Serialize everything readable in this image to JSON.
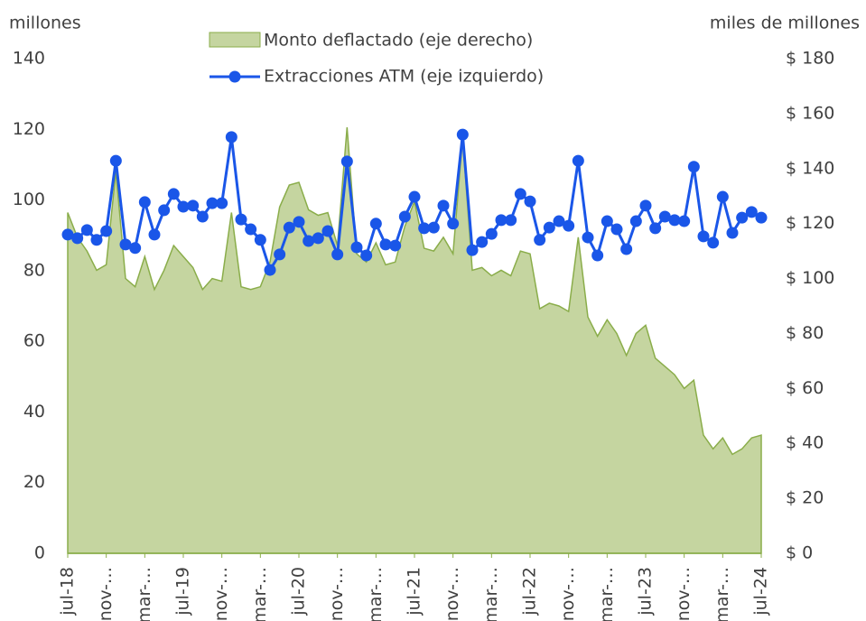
{
  "chart_data": {
    "type": "combo",
    "y_label": "millones",
    "y2_label": "miles de millones",
    "categories": [
      "jul-18",
      null,
      null,
      null,
      "nov-…",
      null,
      null,
      null,
      "mar-…",
      null,
      null,
      null,
      "jul-19",
      null,
      null,
      null,
      "nov-…",
      null,
      null,
      null,
      "mar-…",
      null,
      null,
      null,
      "jul-20",
      null,
      null,
      null,
      "nov-…",
      null,
      null,
      null,
      "mar-…",
      null,
      null,
      null,
      "jul-21",
      null,
      null,
      null,
      "nov-…",
      null,
      null,
      null,
      "mar-…",
      null,
      null,
      null,
      "jul-22",
      null,
      null,
      null,
      "nov-…",
      null,
      null,
      null,
      "mar-…",
      null,
      null,
      null,
      "jul-23",
      null,
      null,
      null,
      "nov-…",
      null,
      null,
      null,
      "mar-…",
      null,
      null,
      null,
      "jul-24"
    ],
    "series": [
      {
        "name": "Monto deflactado (eje derecho)",
        "type": "area",
        "axis": "y2",
        "color": "#c5d5a0",
        "line_color": "#8aad4a",
        "values": [
          124,
          115,
          110,
          103,
          105,
          139,
          100,
          97,
          108,
          96,
          103,
          112,
          108,
          104,
          96,
          100,
          99,
          124,
          97,
          96,
          97,
          106,
          126,
          134,
          135,
          125,
          123,
          124,
          112,
          155,
          109,
          106,
          113,
          105,
          106,
          119,
          128,
          111,
          110,
          115,
          109,
          151,
          103,
          104,
          101,
          103,
          101,
          110,
          109,
          89,
          91,
          90,
          88,
          115,
          86,
          79,
          85,
          80,
          72,
          80,
          83,
          71,
          68,
          65,
          60,
          63,
          43,
          38,
          42,
          36,
          38,
          42,
          43
        ]
      },
      {
        "name": "Extracciones ATM  (eje izquierdo)",
        "type": "line",
        "axis": "y",
        "color": "#1a56e8",
        "values": [
          90.2,
          89.2,
          91.5,
          88.7,
          91.2,
          111.1,
          87.4,
          86.4,
          99.4,
          90.2,
          97.1,
          101.7,
          98.1,
          98.4,
          95.3,
          99.1,
          99.1,
          117.8,
          94.5,
          91.7,
          88.7,
          80.2,
          84.6,
          92.2,
          93.8,
          88.4,
          89.2,
          91.2,
          84.6,
          110.9,
          86.6,
          84.3,
          93.3,
          87.4,
          87.1,
          95.3,
          100.9,
          92.0,
          92.2,
          98.4,
          93.3,
          118.5,
          85.8,
          88.1,
          90.4,
          94.3,
          94.3,
          101.7,
          99.6,
          88.7,
          92.2,
          94.0,
          92.7,
          111.1,
          89.4,
          84.3,
          94.0,
          91.7,
          86.1,
          94.0,
          98.4,
          92.0,
          95.3,
          94.3,
          94.0,
          109.4,
          89.7,
          87.9,
          100.9,
          90.7,
          95.0,
          96.6,
          95.0
        ]
      }
    ],
    "ylim": [
      0,
      140
    ],
    "yticks": [
      0,
      20,
      40,
      60,
      80,
      100,
      120,
      140
    ],
    "y2lim": [
      0,
      180
    ],
    "y2ticks": [
      {
        "value": 0,
        "label": "$ 0"
      },
      {
        "value": 20,
        "label": "$ 20"
      },
      {
        "value": 40,
        "label": "$ 40"
      },
      {
        "value": 60,
        "label": "$ 60"
      },
      {
        "value": 80,
        "label": "$ 80"
      },
      {
        "value": 100,
        "label": "$ 100"
      },
      {
        "value": 120,
        "label": "$ 120"
      },
      {
        "value": 140,
        "label": "$ 140"
      },
      {
        "value": 160,
        "label": "$ 160"
      },
      {
        "value": 180,
        "label": "$ 180"
      }
    ],
    "grid": false
  }
}
